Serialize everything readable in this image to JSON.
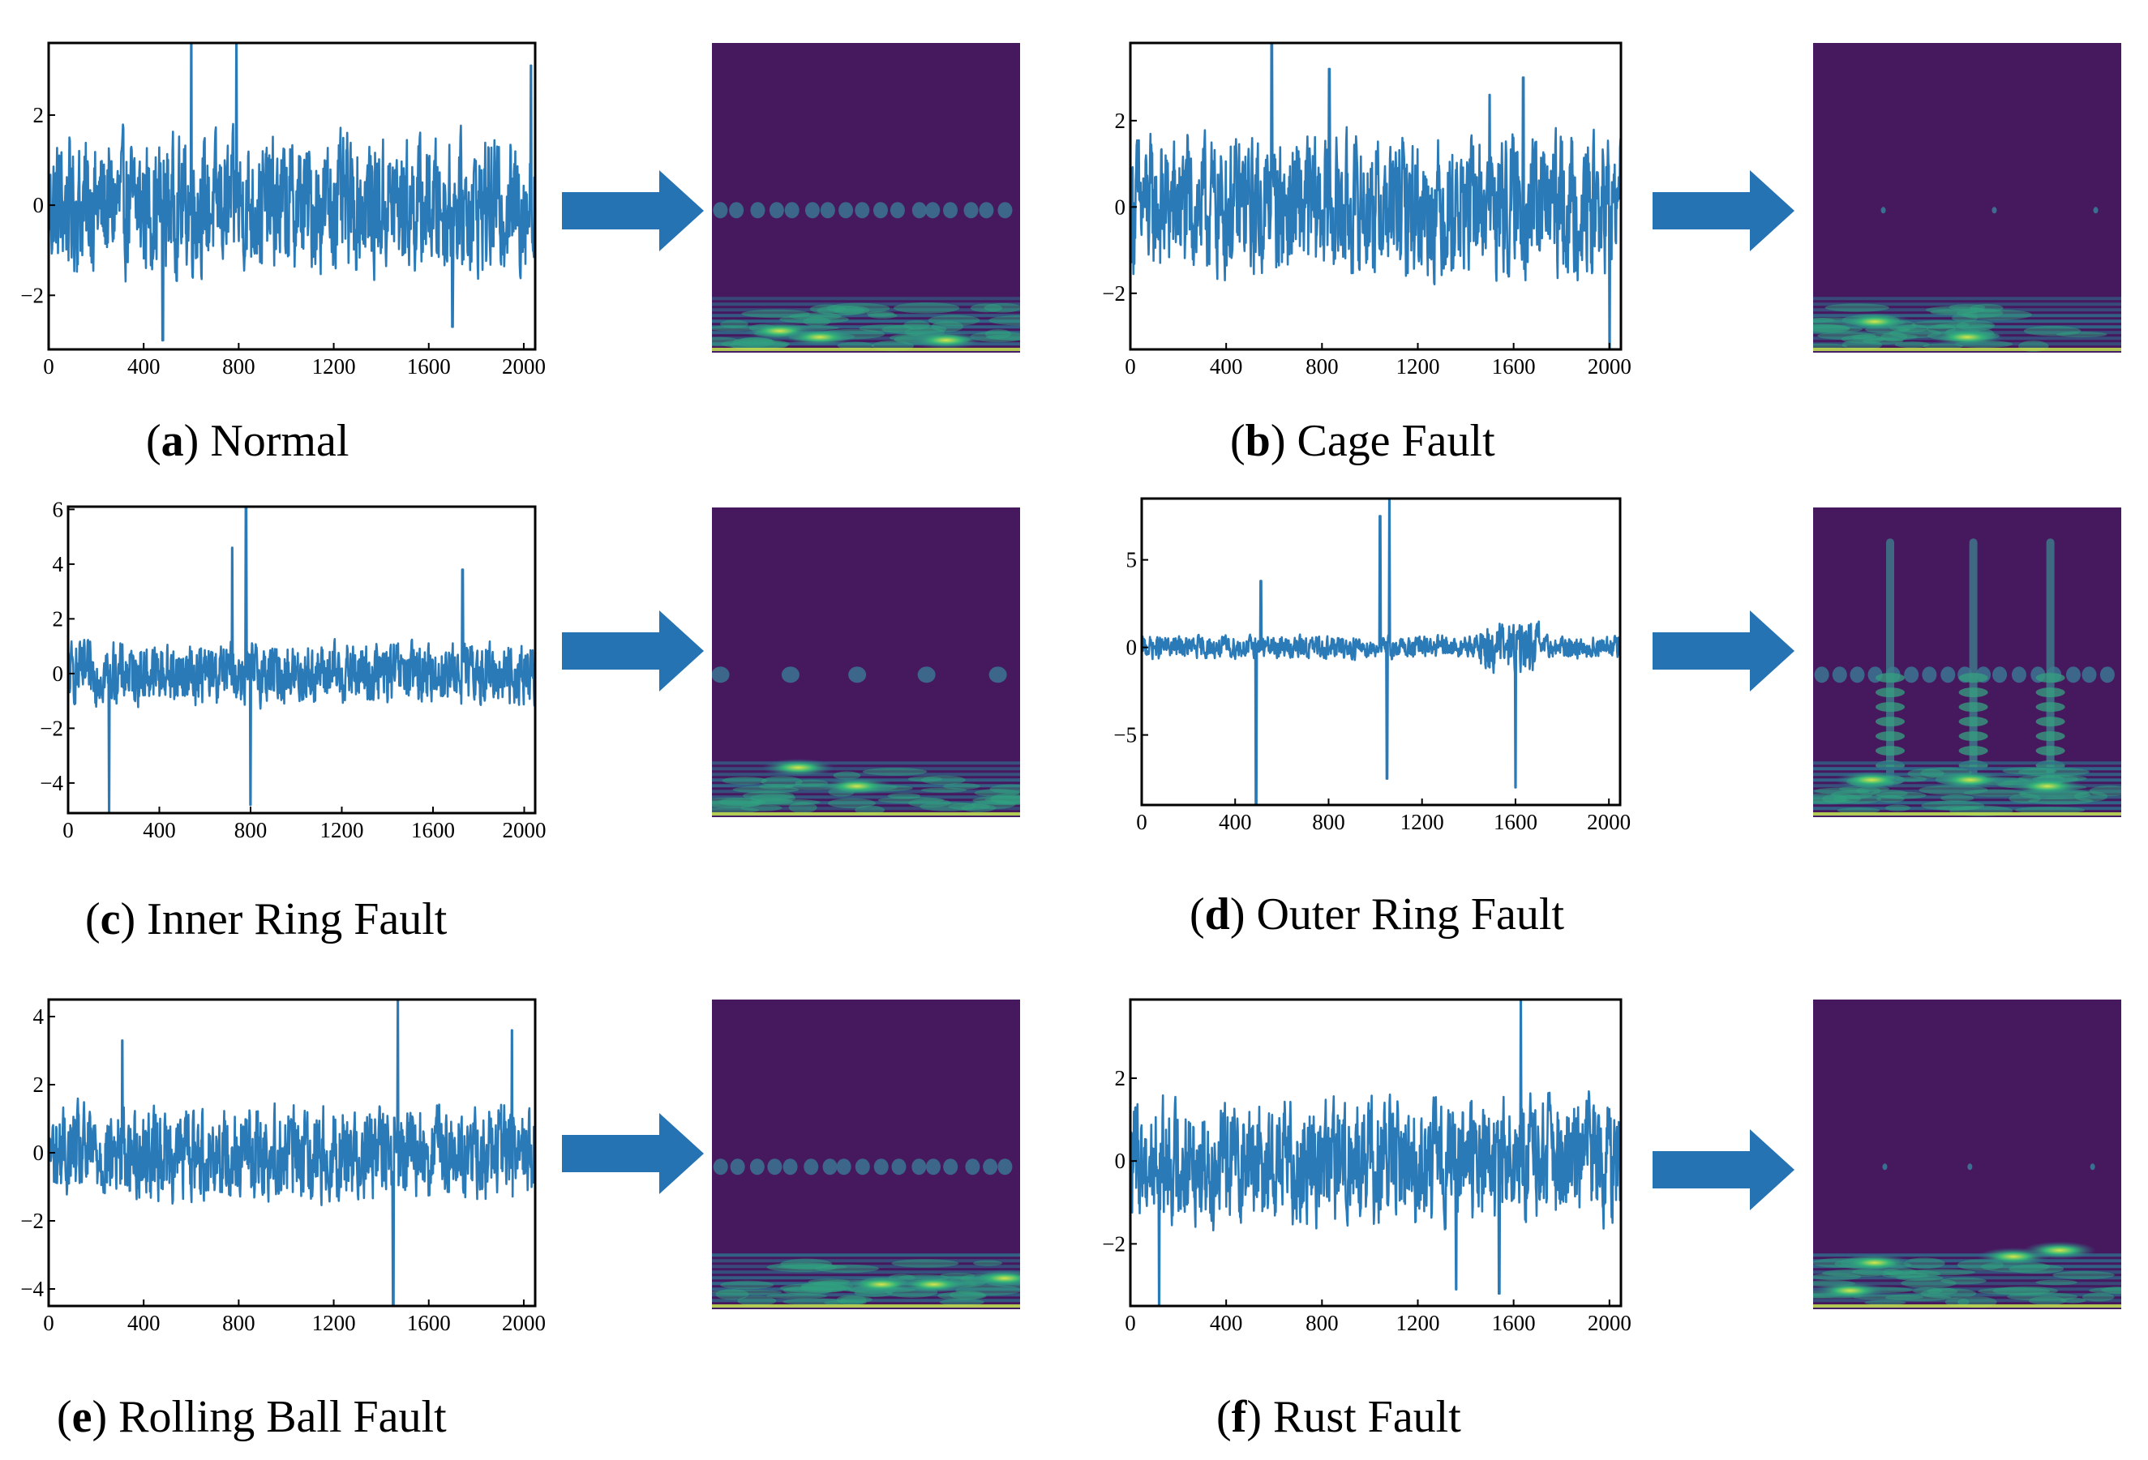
{
  "colors": {
    "signal": "#2a7ab8",
    "arrow": "#2673b4",
    "spectrogram_bg": "#46195f",
    "spectrogram_band": "#3b6f8f",
    "spectrogram_hot": "#d7e84a"
  },
  "panels": [
    {
      "id": "a",
      "letter": "a",
      "label": " Normal",
      "yticks": [
        "2",
        "0",
        "−2"
      ],
      "xticks": [
        "0",
        "400",
        "800",
        "1200",
        "1600",
        "2000"
      ]
    },
    {
      "id": "b",
      "letter": "b",
      "label": " Cage Fault",
      "yticks": [
        "2",
        "0",
        "−2"
      ],
      "xticks": [
        "0",
        "400",
        "800",
        "1200",
        "1600",
        "2000"
      ]
    },
    {
      "id": "c",
      "letter": "c",
      "label": " Inner Ring Fault",
      "yticks": [
        "6",
        "4",
        "2",
        "0",
        "−2",
        "−4"
      ],
      "xticks": [
        "0",
        "400",
        "800",
        "1200",
        "1600",
        "2000"
      ]
    },
    {
      "id": "d",
      "letter": "d",
      "label": " Outer Ring Fault",
      "yticks": [
        "5",
        "0",
        "−5"
      ],
      "xticks": [
        "0",
        "400",
        "800",
        "1200",
        "1600",
        "2000"
      ]
    },
    {
      "id": "e",
      "letter": "e",
      "label": " Rolling Ball Fault",
      "yticks": [
        "4",
        "2",
        "0",
        "−2",
        "−4"
      ],
      "xticks": [
        "0",
        "400",
        "800",
        "1200",
        "1600",
        "2000"
      ]
    },
    {
      "id": "f",
      "letter": "f",
      "label": " Rust Fault",
      "yticks": [
        "2",
        "0",
        "−2"
      ],
      "xticks": [
        "0",
        "400",
        "800",
        "1200",
        "1600",
        "2000"
      ]
    }
  ],
  "chart_data": [
    {
      "type": "line",
      "panel": "a",
      "x_range": [
        0,
        2048
      ],
      "ylim": [
        -3.2,
        3.6
      ],
      "xticks": [
        0,
        400,
        800,
        1200,
        1600,
        2000
      ],
      "yticks": [
        2,
        0,
        -2
      ],
      "amplitude": 1.2,
      "spikes": [
        [
          600,
          3.6
        ],
        [
          790,
          3.6
        ],
        [
          480,
          -3.0
        ],
        [
          2030,
          3.1
        ],
        [
          1700,
          -2.7
        ]
      ]
    },
    {
      "type": "line",
      "panel": "b",
      "x_range": [
        0,
        2048
      ],
      "ylim": [
        -3.3,
        3.8
      ],
      "xticks": [
        0,
        400,
        800,
        1200,
        1600,
        2000
      ],
      "yticks": [
        2,
        0,
        -2
      ],
      "amplitude": 1.3,
      "spikes": [
        [
          590,
          3.8
        ],
        [
          830,
          3.2
        ],
        [
          1640,
          3.0
        ],
        [
          2000,
          -3.3
        ],
        [
          1500,
          2.6
        ]
      ]
    },
    {
      "type": "line",
      "panel": "c",
      "x_range": [
        0,
        2048
      ],
      "ylim": [
        -5.1,
        6.1
      ],
      "xticks": [
        0,
        400,
        800,
        1200,
        1600,
        2000
      ],
      "yticks": [
        6,
        4,
        2,
        0,
        -2,
        -4
      ],
      "amplitude": 0.9,
      "spikes": [
        [
          180,
          -5.1
        ],
        [
          780,
          6.1
        ],
        [
          800,
          -4.8
        ],
        [
          1730,
          3.8
        ],
        [
          720,
          4.6
        ]
      ]
    },
    {
      "type": "line",
      "panel": "d",
      "x_range": [
        0,
        2048
      ],
      "ylim": [
        -9.0,
        8.5
      ],
      "xticks": [
        0,
        400,
        800,
        1200,
        1600,
        2000
      ],
      "yticks": [
        5,
        0,
        -5
      ],
      "amplitude": 0.6,
      "spikes": [
        [
          490,
          -9.0
        ],
        [
          1020,
          7.5
        ],
        [
          1060,
          8.5
        ],
        [
          1050,
          -7.5
        ],
        [
          1600,
          -8.0
        ],
        [
          510,
          3.8
        ]
      ]
    },
    {
      "type": "line",
      "panel": "e",
      "x_range": [
        0,
        2048
      ],
      "ylim": [
        -4.5,
        4.5
      ],
      "xticks": [
        0,
        400,
        800,
        1200,
        1600,
        2000
      ],
      "yticks": [
        4,
        2,
        0,
        -2,
        -4
      ],
      "amplitude": 1.1,
      "spikes": [
        [
          1450,
          -4.5
        ],
        [
          1470,
          4.5
        ],
        [
          1950,
          3.6
        ],
        [
          310,
          3.3
        ]
      ]
    },
    {
      "type": "line",
      "panel": "f",
      "x_range": [
        0,
        2048
      ],
      "ylim": [
        -3.5,
        3.9
      ],
      "xticks": [
        0,
        400,
        800,
        1200,
        1600,
        2000
      ],
      "yticks": [
        2,
        0,
        -2
      ],
      "amplitude": 1.2,
      "spikes": [
        [
          1630,
          3.9
        ],
        [
          120,
          -3.5
        ],
        [
          1360,
          -3.1
        ],
        [
          1540,
          -3.2
        ]
      ]
    }
  ]
}
